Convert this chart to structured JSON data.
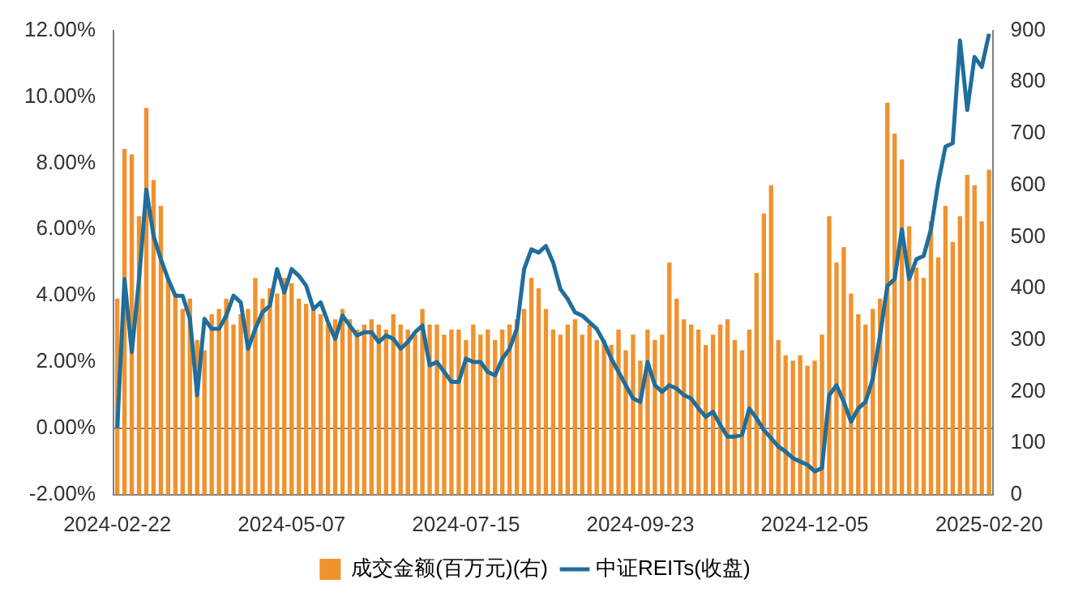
{
  "chart_data": {
    "type": "bar",
    "categories": [
      "2024-02-22",
      null,
      null,
      null,
      null,
      null,
      null,
      null,
      null,
      null,
      null,
      null,
      null,
      null,
      null,
      null,
      null,
      null,
      null,
      null,
      null,
      null,
      null,
      null,
      "2024-05-07",
      null,
      null,
      null,
      null,
      null,
      null,
      null,
      null,
      null,
      null,
      null,
      null,
      null,
      null,
      null,
      null,
      null,
      null,
      null,
      null,
      null,
      null,
      null,
      "2024-07-15",
      null,
      null,
      null,
      null,
      null,
      null,
      null,
      null,
      null,
      null,
      null,
      null,
      null,
      null,
      null,
      null,
      null,
      null,
      null,
      null,
      null,
      null,
      null,
      "2024-09-23",
      null,
      null,
      null,
      null,
      null,
      null,
      null,
      null,
      null,
      null,
      null,
      null,
      null,
      null,
      null,
      null,
      null,
      null,
      null,
      null,
      null,
      null,
      null,
      "2024-12-05",
      null,
      null,
      null,
      null,
      null,
      null,
      null,
      null,
      null,
      null,
      null,
      null,
      null,
      null,
      null,
      null,
      null,
      null,
      null,
      null,
      null,
      null,
      null,
      "2025-02-20"
    ],
    "series": [
      {
        "name": "成交金额(百万元)(右)",
        "axis": "y2",
        "color": "#f0922e",
        "values": [
          380,
          670,
          660,
          540,
          750,
          610,
          560,
          420,
          390,
          360,
          380,
          300,
          280,
          350,
          360,
          380,
          330,
          350,
          360,
          420,
          380,
          400,
          390,
          420,
          410,
          380,
          370,
          360,
          350,
          330,
          340,
          360,
          340,
          320,
          330,
          340,
          330,
          320,
          350,
          330,
          320,
          310,
          360,
          330,
          330,
          310,
          320,
          320,
          300,
          330,
          310,
          320,
          300,
          320,
          330,
          340,
          360,
          420,
          400,
          360,
          320,
          310,
          330,
          340,
          310,
          330,
          300,
          300,
          290,
          320,
          280,
          310,
          260,
          320,
          300,
          310,
          450,
          380,
          340,
          330,
          320,
          290,
          310,
          330,
          340,
          300,
          280,
          320,
          430,
          545,
          600,
          300,
          270,
          260,
          270,
          250,
          260,
          310,
          540,
          450,
          480,
          390,
          350,
          330,
          360,
          380,
          760,
          700,
          650,
          520,
          440,
          420,
          530,
          460,
          560,
          490,
          540,
          620,
          600,
          530,
          630
        ]
      },
      {
        "name": "中证REITs(收盘)",
        "type": "line",
        "axis": "y",
        "color": "#1f6e9c",
        "values": [
          0,
          4.5,
          2.3,
          4.5,
          7.2,
          5.8,
          5.1,
          4.5,
          4.0,
          4.0,
          3.3,
          1.0,
          3.3,
          3.0,
          3.0,
          3.4,
          4.0,
          3.8,
          2.4,
          3.0,
          3.5,
          3.7,
          4.8,
          4.1,
          4.8,
          4.6,
          4.3,
          3.6,
          3.8,
          3.2,
          2.7,
          3.4,
          3.1,
          2.8,
          2.9,
          2.9,
          2.6,
          2.8,
          2.7,
          2.4,
          2.6,
          2.9,
          3.1,
          1.9,
          2.0,
          1.7,
          1.4,
          1.4,
          2.1,
          2.0,
          2.0,
          1.7,
          1.6,
          2.1,
          2.4,
          3.0,
          4.8,
          5.4,
          5.3,
          5.5,
          5.0,
          4.2,
          3.9,
          3.5,
          3.4,
          3.2,
          3.0,
          2.6,
          2.1,
          1.7,
          1.3,
          0.9,
          0.8,
          2.0,
          1.3,
          1.1,
          1.3,
          1.2,
          1.0,
          0.9,
          0.6,
          0.35,
          0.5,
          0.1,
          -0.25,
          -0.25,
          -0.2,
          0.6,
          0.3,
          -0.05,
          -0.3,
          -0.55,
          -0.7,
          -0.9,
          -1.0,
          -1.1,
          -1.3,
          -1.2,
          1.0,
          1.3,
          0.8,
          0.2,
          0.6,
          0.8,
          1.5,
          2.8,
          4.3,
          4.5,
          6.0,
          4.5,
          5.1,
          5.2,
          6.0,
          7.4,
          8.5,
          8.6,
          11.7,
          9.6,
          11.2,
          10.9,
          11.9
        ]
      }
    ],
    "ylim": [
      -2,
      12
    ],
    "yticks": [
      {
        "value": -2,
        "label": "-2.00%"
      },
      {
        "value": 0,
        "label": "0.00%"
      },
      {
        "value": 2,
        "label": "2.00%"
      },
      {
        "value": 4,
        "label": "4.00%"
      },
      {
        "value": 6,
        "label": "6.00%"
      },
      {
        "value": 8,
        "label": "8.00%"
      },
      {
        "value": 10,
        "label": "10.00%"
      },
      {
        "value": 12,
        "label": "12.00%"
      }
    ],
    "y2lim": [
      0,
      900
    ],
    "y2ticks": [
      0,
      100,
      200,
      300,
      400,
      500,
      600,
      700,
      800,
      900
    ],
    "ref_lines": [
      {
        "axis": "y",
        "value": 0,
        "color": "#7f7f7f"
      }
    ],
    "legend": "bottom",
    "grid": false,
    "marker": "none"
  }
}
